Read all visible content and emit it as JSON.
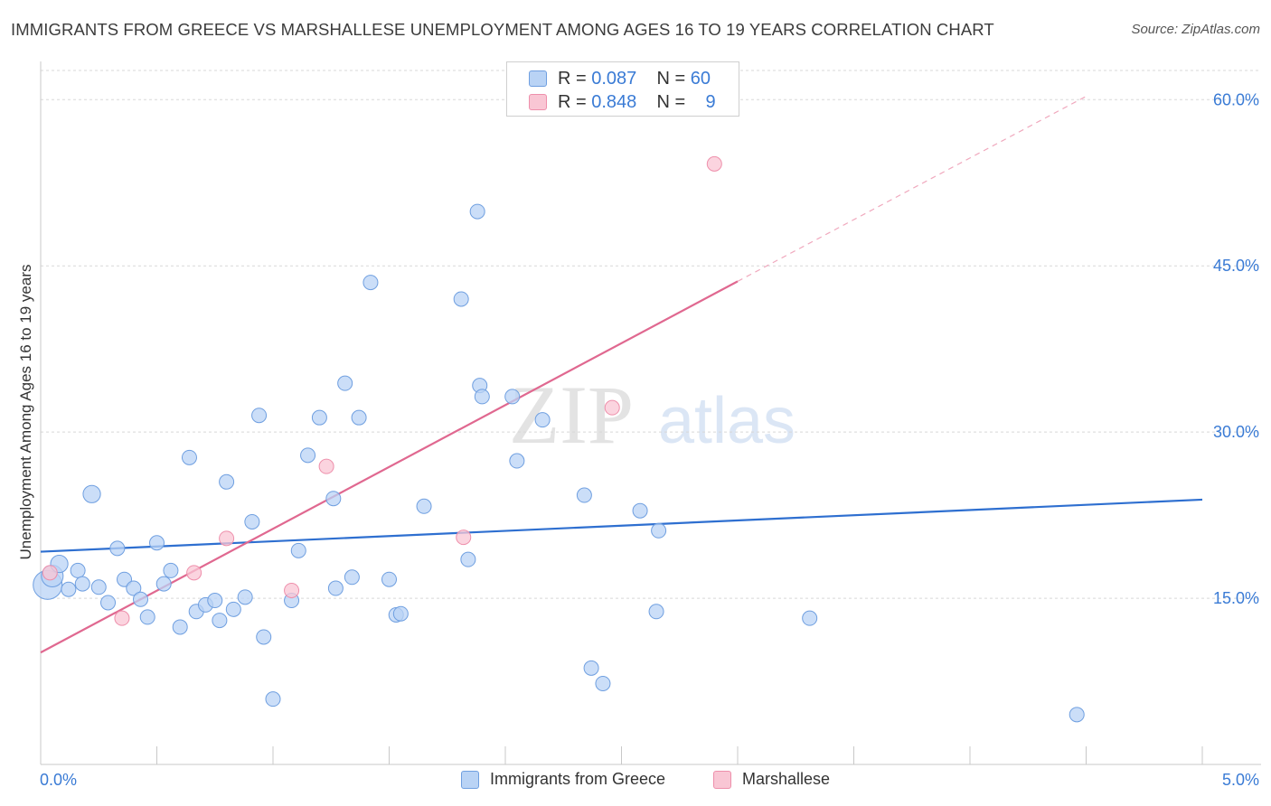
{
  "title": "IMMIGRANTS FROM GREECE VS MARSHALLESE UNEMPLOYMENT AMONG AGES 16 TO 19 YEARS CORRELATION CHART",
  "source": "Source: ZipAtlas.com",
  "legend": {
    "rows": [
      {
        "r_label": "R =",
        "r_value": "0.087",
        "n_label": "N =",
        "n_value": "60"
      },
      {
        "r_label": "R =",
        "r_value": "0.848",
        "n_label": "N =",
        "n_value": "9"
      }
    ]
  },
  "watermark": {
    "zip": "ZIP",
    "atlas": "atlas"
  },
  "colors": {
    "blue_fill": "#b9d3f5",
    "blue_stroke": "#6f9fe0",
    "blue_line": "#2e6fd0",
    "pink_fill": "#f9c6d4",
    "pink_stroke": "#ee8fab",
    "pink_line": "#e06890",
    "axis_label": "#3a7bd5",
    "grid": "#d8d8d8"
  },
  "chart_data": {
    "type": "scatter",
    "title": "IMMIGRANTS FROM GREECE VS MARSHALLESE UNEMPLOYMENT AMONG AGES 16 TO 19 YEARS CORRELATION CHART",
    "xlabel": "",
    "ylabel": "Unemployment Among Ages 16 to 19 years",
    "xlim": [
      0,
      5
    ],
    "ylim": [
      0,
      60
    ],
    "x_tick_labels": [
      "0.0%",
      "5.0%"
    ],
    "y_ticks": [
      15,
      30,
      45,
      60
    ],
    "y_tick_labels": [
      "15.0%",
      "30.0%",
      "45.0%",
      "60.0%"
    ],
    "series": [
      {
        "name": "Immigrants from Greece",
        "color": "#b9d3f5",
        "points": [
          [
            0.03,
            16.2,
            2.0
          ],
          [
            0.05,
            17.0,
            1.5
          ],
          [
            0.08,
            18.1,
            1.2
          ],
          [
            0.12,
            15.8,
            1.0
          ],
          [
            0.16,
            17.5,
            1.0
          ],
          [
            0.18,
            16.3,
            1.0
          ],
          [
            0.22,
            24.4,
            1.2
          ],
          [
            0.25,
            16.0,
            1.0
          ],
          [
            0.29,
            14.6,
            1.0
          ],
          [
            0.33,
            19.5,
            1.0
          ],
          [
            0.36,
            16.7,
            1.0
          ],
          [
            0.4,
            15.9,
            1.0
          ],
          [
            0.43,
            14.9,
            1.0
          ],
          [
            0.46,
            13.3,
            1.0
          ],
          [
            0.5,
            20.0,
            1.0
          ],
          [
            0.53,
            16.3,
            1.0
          ],
          [
            0.56,
            17.5,
            1.0
          ],
          [
            0.6,
            12.4,
            1.0
          ],
          [
            0.64,
            27.7,
            1.0
          ],
          [
            0.67,
            13.8,
            1.0
          ],
          [
            0.71,
            14.4,
            1.0
          ],
          [
            0.75,
            14.8,
            1.0
          ],
          [
            0.77,
            13.0,
            1.0
          ],
          [
            0.8,
            25.5,
            1.0
          ],
          [
            0.83,
            14.0,
            1.0
          ],
          [
            0.88,
            15.1,
            1.0
          ],
          [
            0.91,
            21.9,
            1.0
          ],
          [
            0.94,
            31.5,
            1.0
          ],
          [
            0.96,
            11.5,
            1.0
          ],
          [
            1.0,
            5.9,
            1.0
          ],
          [
            1.08,
            14.8,
            1.0
          ],
          [
            1.11,
            19.3,
            1.0
          ],
          [
            1.15,
            27.9,
            1.0
          ],
          [
            1.2,
            31.3,
            1.0
          ],
          [
            1.26,
            24.0,
            1.0
          ],
          [
            1.27,
            15.9,
            1.0
          ],
          [
            1.31,
            34.4,
            1.0
          ],
          [
            1.34,
            16.9,
            1.0
          ],
          [
            1.37,
            31.3,
            1.0
          ],
          [
            1.42,
            43.5,
            1.0
          ],
          [
            1.5,
            16.7,
            1.0
          ],
          [
            1.53,
            13.5,
            1.0
          ],
          [
            1.55,
            13.6,
            1.0
          ],
          [
            1.65,
            23.3,
            1.0
          ],
          [
            1.81,
            42.0,
            1.0
          ],
          [
            1.84,
            18.5,
            1.0
          ],
          [
            1.89,
            34.2,
            1.0
          ],
          [
            1.9,
            33.2,
            1.0
          ],
          [
            1.88,
            49.9,
            1.0
          ],
          [
            2.03,
            33.2,
            1.0
          ],
          [
            2.05,
            27.4,
            1.0
          ],
          [
            2.16,
            31.1,
            1.0
          ],
          [
            2.34,
            24.3,
            1.0
          ],
          [
            2.37,
            8.7,
            1.0
          ],
          [
            2.42,
            7.3,
            1.0
          ],
          [
            2.58,
            22.9,
            1.0
          ],
          [
            2.66,
            21.1,
            1.0
          ],
          [
            2.65,
            13.8,
            1.0
          ],
          [
            3.31,
            13.2,
            1.0
          ],
          [
            4.46,
            4.5,
            1.0
          ]
        ],
        "trend": {
          "x0": 0,
          "y0": 19.2,
          "x1": 5,
          "y1": 23.9
        }
      },
      {
        "name": "Marshallese",
        "color": "#f9c6d4",
        "points": [
          [
            0.04,
            17.3,
            1.0
          ],
          [
            0.35,
            13.2,
            1.0
          ],
          [
            0.66,
            17.3,
            1.0
          ],
          [
            0.8,
            20.4,
            1.0
          ],
          [
            1.08,
            15.7,
            1.0
          ],
          [
            1.23,
            26.9,
            1.0
          ],
          [
            1.82,
            20.5,
            1.0
          ],
          [
            2.46,
            32.2,
            1.0
          ],
          [
            2.9,
            54.2,
            1.0
          ]
        ],
        "trend": {
          "x0": 0,
          "y0": 10.1,
          "x1": 3.0,
          "y1": 43.6,
          "dashed_to_x": 4.5,
          "dashed_to_y": 60.3
        }
      }
    ]
  },
  "bottom_legend": [
    "Immigrants from Greece",
    "Marshallese"
  ]
}
